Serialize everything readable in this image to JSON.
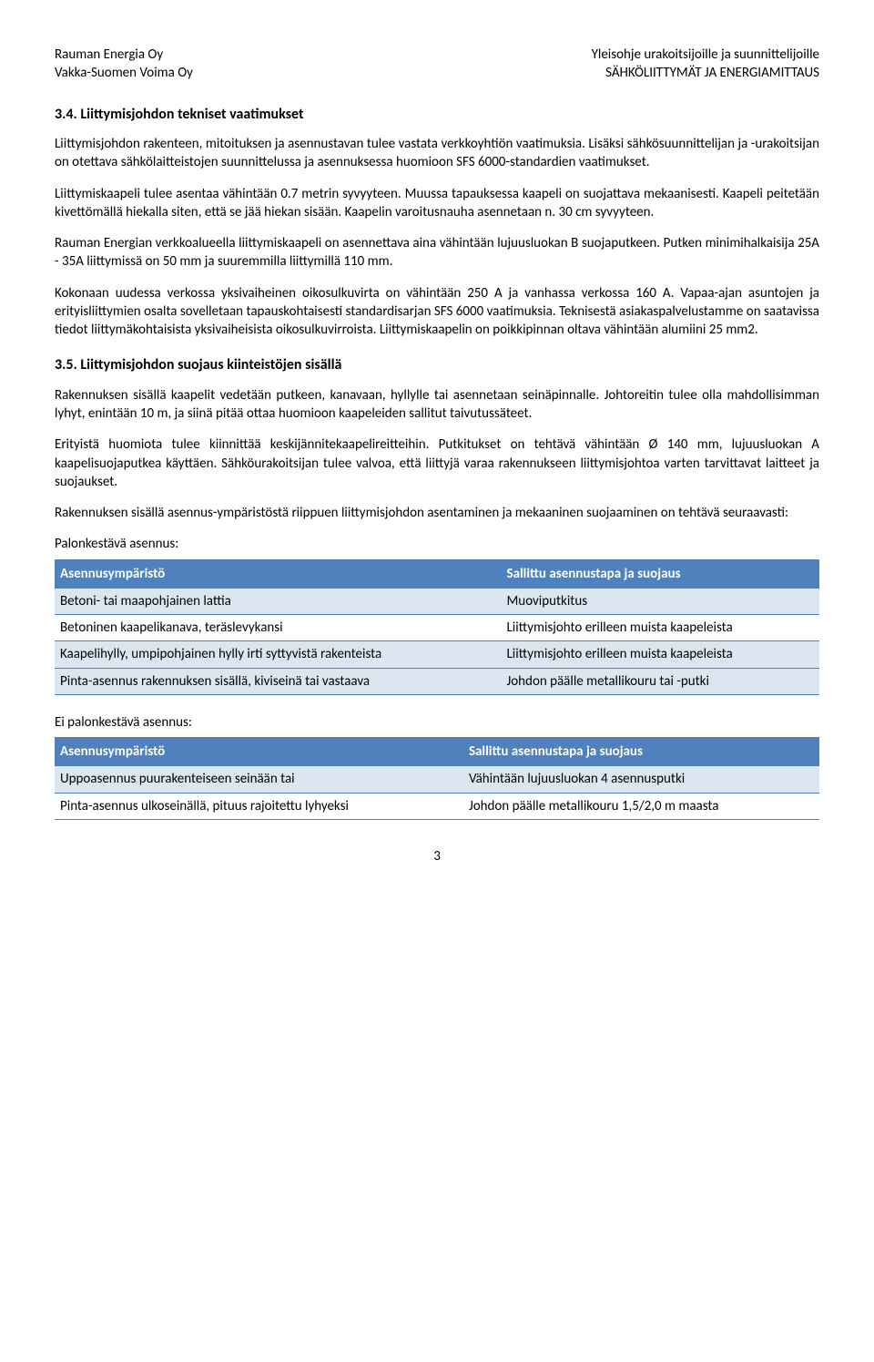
{
  "header": {
    "left_line1": "Rauman Energia Oy",
    "left_line2": "Vakka-Suomen Voima Oy",
    "right_line1": "Yleisohje urakoitsijoille ja suunnittelijoille",
    "right_line2": "SÄHKÖLIITTYMÄT JA ENERGIAMITTAUS"
  },
  "section_34": {
    "heading": "3.4. Liittymisjohdon tekniset vaatimukset",
    "p1": "Liittymisjohdon rakenteen, mitoituksen ja asennustavan tulee vastata verkkoyhtiön vaatimuksia. Lisäksi sähkösuunnittelijan ja -urakoitsijan on otettava sähkölaitteistojen suunnittelussa ja asennuksessa huomioon SFS 6000-standardien vaatimukset.",
    "p2": "Liittymiskaapeli tulee asentaa vähintään 0.7 metrin syvyyteen. Muussa tapauksessa kaapeli on suojattava mekaanisesti. Kaapeli peitetään kivettömällä hiekalla siten, että se jää hiekan sisään. Kaapelin varoitusnauha asennetaan n. 30 cm syvyyteen.",
    "p3": "Rauman Energian verkkoalueella liittymiskaapeli on asennettava aina vähintään lujuusluokan B suojaputkeen. Putken minimihalkaisija 25A - 35A liittymissä on 50 mm ja suuremmilla liittymillä 110 mm.",
    "p4": "Kokonaan uudessa verkossa yksivaiheinen oikosulkuvirta on vähintään 250 A ja vanhassa verkossa 160 A. Vapaa-ajan asuntojen ja erityisliittymien osalta sovelletaan tapauskohtaisesti standardisarjan SFS 6000 vaatimuksia. Teknisestä asiakaspalvelustamme on saatavissa tiedot liittymäkohtaisista yksivaiheisista oikosulkuvirroista. Liittymiskaapelin on poikkipinnan oltava vähintään alumiini 25 mm2."
  },
  "section_35": {
    "heading": "3.5. Liittymisjohdon suojaus kiinteistöjen sisällä",
    "p1": "Rakennuksen sisällä kaapelit vedetään putkeen, kanavaan, hyllylle tai asennetaan seinäpinnalle. Johtoreitin tulee olla mahdollisimman lyhyt, enintään 10 m, ja siinä pitää ottaa huomioon kaapeleiden sallitut taivutussäteet.",
    "p2": "Erityistä huomiota tulee kiinnittää keskijännitekaapelireitteihin. Putkitukset on tehtävä vähintään Ø 140 mm, lujuusluokan A kaapelisuojaputkea käyttäen. Sähköurakoitsijan tulee valvoa, että liittyjä varaa rakennukseen liittymisjohtoa varten tarvittavat laitteet ja suojaukset.",
    "p3": "Rakennuksen sisällä asennus-ympäristöstä riippuen liittymisjohdon asentaminen ja mekaaninen suojaaminen on tehtävä seuraavasti:"
  },
  "table1": {
    "caption": "Palonkestävä asennus:",
    "col1_header": "Asennusympäristö",
    "col2_header": "Sallittu asennustapa ja suojaus",
    "rows": [
      {
        "c1": "Betoni- tai maapohjainen lattia",
        "c2": "Muoviputkitus"
      },
      {
        "c1": "Betoninen kaapelikanava, teräslevykansi",
        "c2": "Liittymisjohto erilleen muista kaapeleista"
      },
      {
        "c1": "Kaapelihylly, umpipohjainen hylly irti syttyvistä rakenteista",
        "c2": "Liittymisjohto erilleen muista kaapeleista"
      },
      {
        "c1": "Pinta-asennus rakennuksen sisällä, kiviseinä tai vastaava",
        "c2": "Johdon päälle metallikouru tai -putki"
      }
    ]
  },
  "table2": {
    "caption": "Ei palonkestävä asennus:",
    "col1_header": "Asennusympäristö",
    "col2_header": "Sallittu asennustapa ja suojaus",
    "rows": [
      {
        "c1": "Uppoasennus puurakenteiseen seinään tai",
        "c2": "Vähintään lujuusluokan 4 asennusputki"
      },
      {
        "c1": "Pinta-asennus ulkoseinällä, pituus rajoitettu lyhyeksi",
        "c2": "Johdon päälle metallikouru 1,5/2,0 m maasta"
      }
    ]
  },
  "page_number": "3"
}
